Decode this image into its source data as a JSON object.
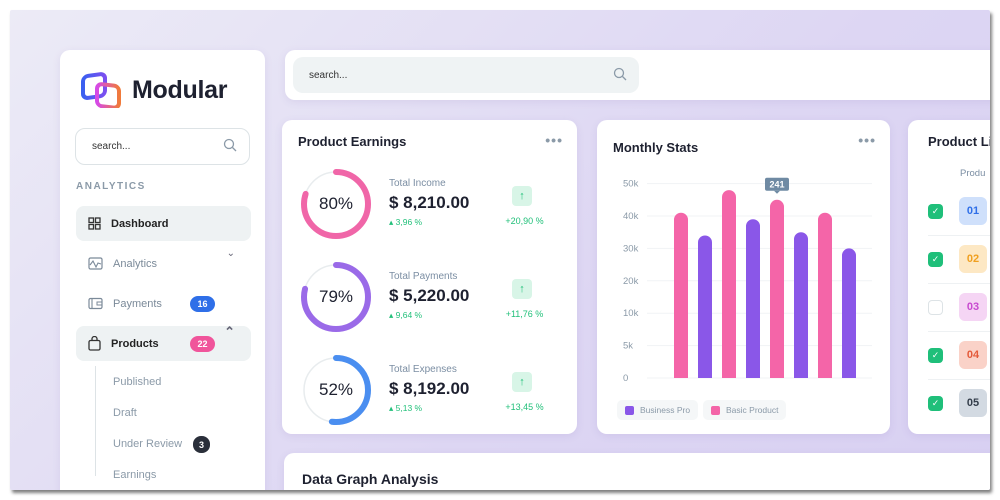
{
  "brand": {
    "name": "Modular"
  },
  "sidebar": {
    "search_placeholder": "search...",
    "section": "ANALYTICS",
    "items": [
      {
        "label": "Dashboard",
        "icon": "grid-icon"
      },
      {
        "label": "Analytics",
        "icon": "chart-icon"
      },
      {
        "label": "Payments",
        "icon": "wallet-icon",
        "badge": "16",
        "badge_color": "#2f6fe8"
      },
      {
        "label": "Products",
        "icon": "bag-icon",
        "badge": "22",
        "badge_color": "#f0559b"
      }
    ],
    "subitems": [
      {
        "label": "Published"
      },
      {
        "label": "Draft"
      },
      {
        "label": "Under Review",
        "badge": "3"
      },
      {
        "label": "Earnings"
      }
    ]
  },
  "topbar": {
    "search_placeholder": "search..."
  },
  "earnings": {
    "title": "Product Earnings",
    "rows": [
      {
        "percent": 80,
        "percent_label": "80%",
        "label": "Total Income",
        "amount": "$ 8,210.00",
        "change": "3,96 %",
        "trend": "+20,90 %",
        "color": "#f066a8"
      },
      {
        "percent": 79,
        "percent_label": "79%",
        "label": "Total Payments",
        "amount": "$ 5,220.00",
        "change": "9,64 %",
        "trend": "+11,76 %",
        "color": "#9a6ae8"
      },
      {
        "percent": 52,
        "percent_label": "52%",
        "label": "Total Expenses",
        "amount": "$ 8,192.00",
        "change": "5,13 %",
        "trend": "+13,45 %",
        "color": "#4a8ef0"
      }
    ]
  },
  "chart_data": {
    "type": "bar",
    "title": "Monthly Stats",
    "yticks": [
      "0",
      "5k",
      "10k",
      "20k",
      "30k",
      "40k",
      "50k"
    ],
    "ytick_values": [
      0,
      5000,
      10000,
      20000,
      30000,
      40000,
      50000
    ],
    "tooltip": "241",
    "grid": true,
    "legend": "bottom-left",
    "series": [
      {
        "name": "Business Pro",
        "color": "#8a57e8",
        "values": [
          34000,
          39000,
          35000,
          30000
        ]
      },
      {
        "name": "Basic Product",
        "color": "#f465a8",
        "values": [
          41000,
          48000,
          45000,
          41000
        ]
      }
    ]
  },
  "product_list": {
    "title": "Product Li",
    "column": "Produ",
    "rows": [
      {
        "id": "01",
        "checked": true,
        "bg": "#cfe0fb",
        "fg": "#2f6fe8"
      },
      {
        "id": "02",
        "checked": true,
        "bg": "#fde8c4",
        "fg": "#f0a020"
      },
      {
        "id": "03",
        "checked": false,
        "bg": "#f5d5f4",
        "fg": "#c84ad0"
      },
      {
        "id": "04",
        "checked": true,
        "bg": "#fad2c8",
        "fg": "#e45a3a"
      },
      {
        "id": "05",
        "checked": true,
        "bg": "#d3dae2",
        "fg": "#333d4a"
      }
    ]
  },
  "data_graph": {
    "title": "Data Graph Analysis"
  }
}
